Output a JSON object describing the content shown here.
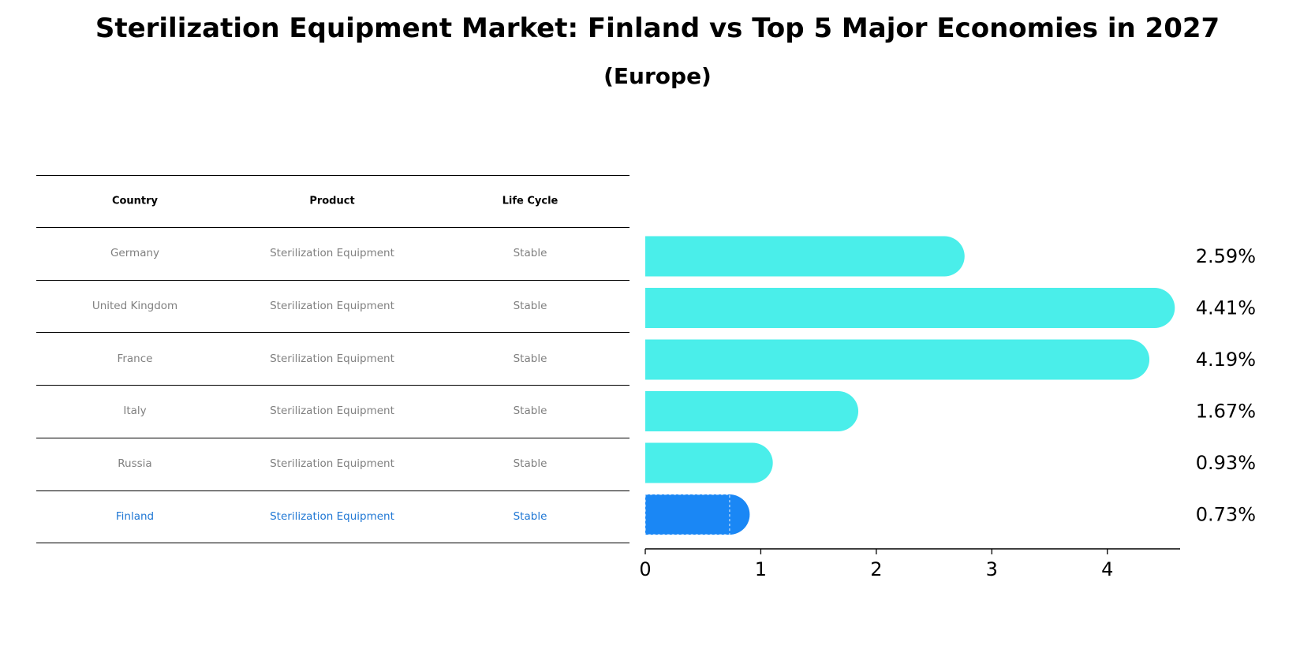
{
  "title": "Sterilization Equipment Market: Finland vs Top 5 Major Economies in 2027",
  "subtitle": "(Europe)",
  "table": {
    "headers": [
      "Country",
      "Product",
      "Life Cycle"
    ],
    "rows": [
      [
        "Germany",
        "Sterilization Equipment",
        "Stable"
      ],
      [
        "United Kingdom",
        "Sterilization Equipment",
        "Stable"
      ],
      [
        "France",
        "Sterilization Equipment",
        "Stable"
      ],
      [
        "Italy",
        "Sterilization Equipment",
        "Stable"
      ],
      [
        "Russia",
        "Sterilization Equipment",
        "Stable"
      ],
      [
        "Finland",
        "Sterilization Equipment",
        "Stable"
      ]
    ],
    "highlight_row": "Finland"
  },
  "colors": {
    "bar": "#4aeeea",
    "highlight_bar": "#1a87f5",
    "highlight_text": "#1f77d4",
    "muted_text": "#808080"
  },
  "chart_data": {
    "type": "bar",
    "orientation": "horizontal",
    "categories": [
      "Germany",
      "United Kingdom",
      "France",
      "Italy",
      "Russia",
      "Finland"
    ],
    "values": [
      2.59,
      4.41,
      4.19,
      1.67,
      0.93,
      0.73
    ],
    "value_labels": [
      "2.59%",
      "4.41%",
      "4.19%",
      "1.67%",
      "0.93%",
      "0.73%"
    ],
    "highlight": "Finland",
    "xlim": [
      0,
      4.63
    ],
    "xticks": [
      0,
      1,
      2,
      3,
      4
    ],
    "xlabel": "",
    "ylabel": "",
    "grid": false
  }
}
